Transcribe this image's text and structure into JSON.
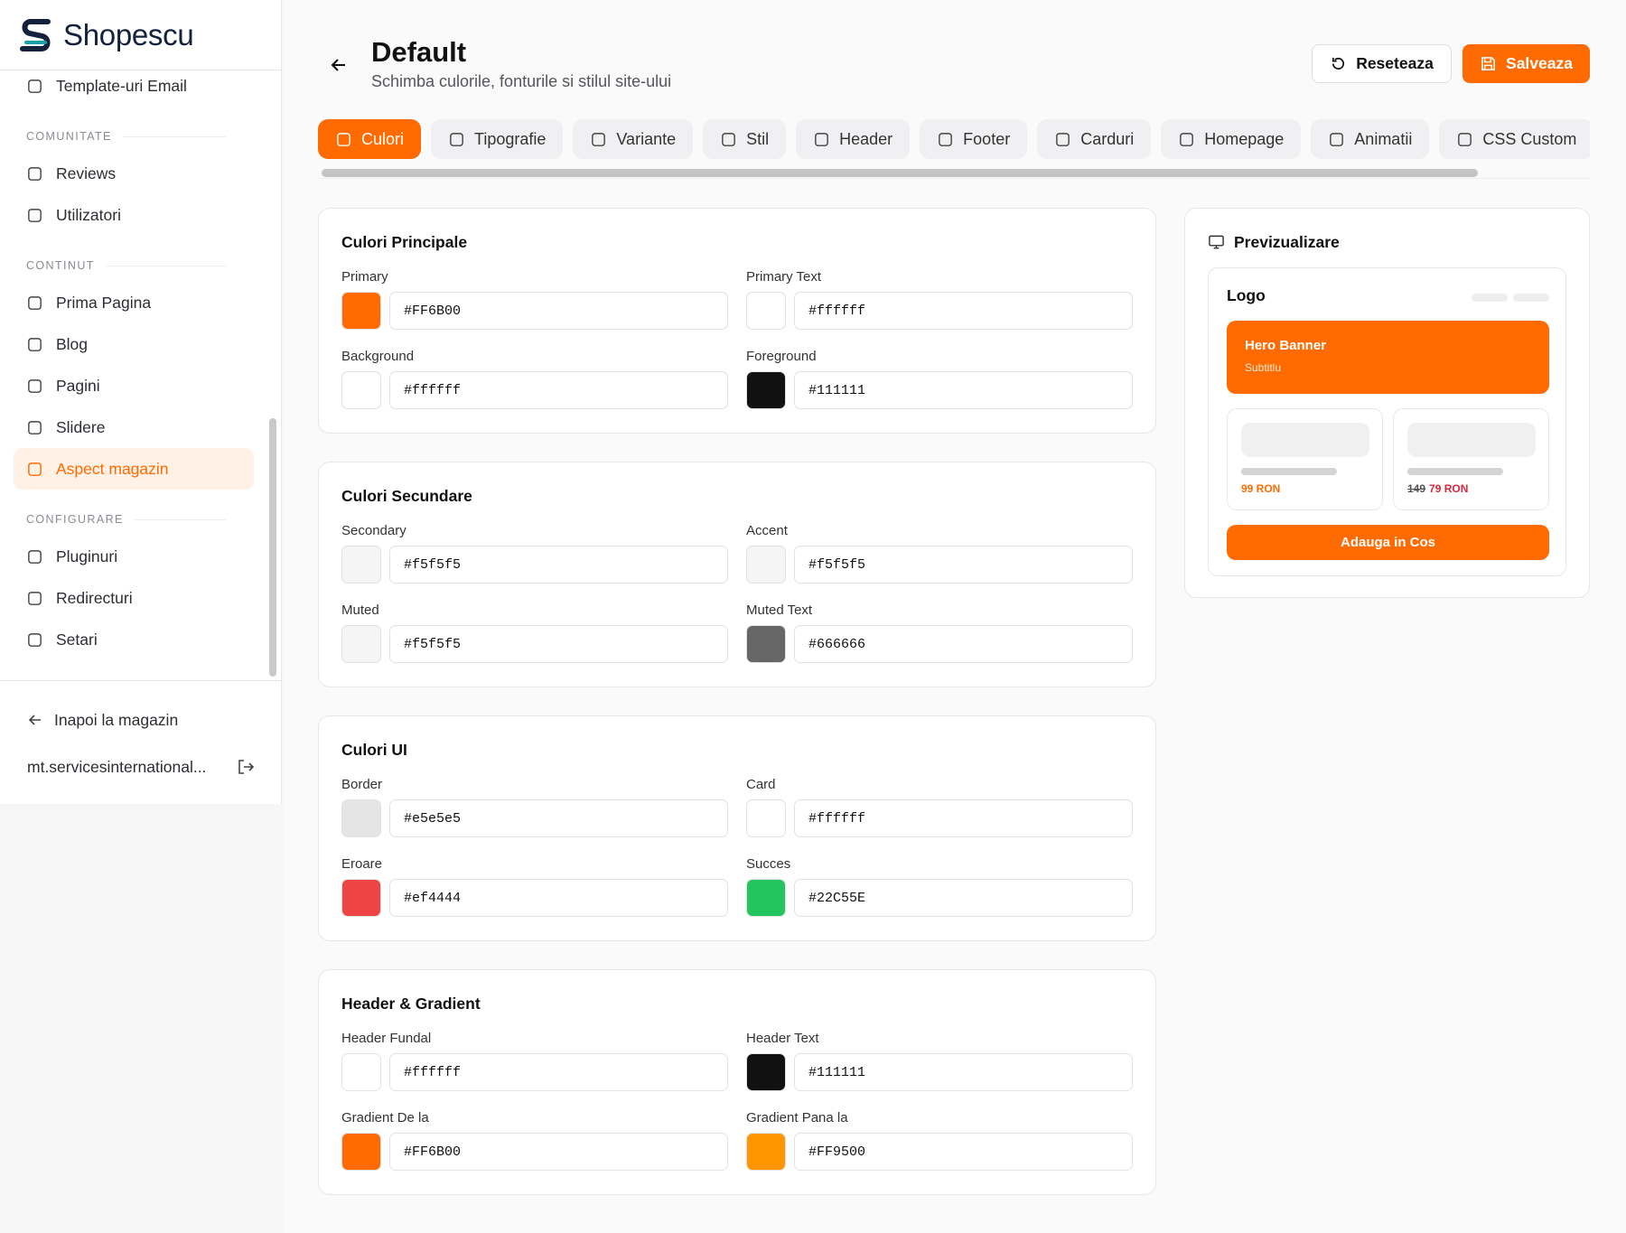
{
  "sidebar": {
    "brand": "Shopescu",
    "top_items": [
      "Template-uri Email"
    ],
    "groups": [
      {
        "label": "COMUNITATE",
        "items": [
          "Reviews",
          "Utilizatori"
        ]
      },
      {
        "label": "CONTINUT",
        "items": [
          "Prima Pagina",
          "Blog",
          "Pagini",
          "Slidere",
          "Aspect magazin"
        ]
      },
      {
        "label": "CONFIGURARE",
        "items": [
          "Pluginuri",
          "Redirecturi",
          "Setari"
        ]
      }
    ],
    "active": "Aspect magazin",
    "back": "Inapoi la magazin",
    "account": "mt.servicesinternational..."
  },
  "header": {
    "title": "Default",
    "subtitle": "Schimba culorile, fonturile si stilul site-ului",
    "reset": "Reseteaza",
    "save": "Salveaza"
  },
  "tabs": {
    "items": [
      "Culori",
      "Tipografie",
      "Variante",
      "Stil",
      "Header",
      "Footer",
      "Carduri",
      "Homepage",
      "Animatii",
      "CSS Custom"
    ],
    "active": "Culori"
  },
  "sections": [
    {
      "title": "Culori Principale",
      "fields": [
        {
          "label": "Primary",
          "value": "#FF6B00"
        },
        {
          "label": "Primary Text",
          "value": "#ffffff"
        },
        {
          "label": "Background",
          "value": "#ffffff"
        },
        {
          "label": "Foreground",
          "value": "#111111"
        }
      ]
    },
    {
      "title": "Culori Secundare",
      "fields": [
        {
          "label": "Secondary",
          "value": "#f5f5f5"
        },
        {
          "label": "Accent",
          "value": "#f5f5f5"
        },
        {
          "label": "Muted",
          "value": "#f5f5f5"
        },
        {
          "label": "Muted Text",
          "value": "#666666"
        }
      ]
    },
    {
      "title": "Culori UI",
      "fields": [
        {
          "label": "Border",
          "value": "#e5e5e5"
        },
        {
          "label": "Card",
          "value": "#ffffff"
        },
        {
          "label": "Eroare",
          "value": "#ef4444"
        },
        {
          "label": "Succes",
          "value": "#22C55E"
        }
      ]
    },
    {
      "title": "Header & Gradient",
      "fields": [
        {
          "label": "Header Fundal",
          "value": "#ffffff"
        },
        {
          "label": "Header Text",
          "value": "#111111"
        },
        {
          "label": "Gradient De la",
          "value": "#FF6B00"
        },
        {
          "label": "Gradient Pana la",
          "value": "#FF9500"
        }
      ]
    }
  ],
  "preview": {
    "title": "Previzualizare",
    "logo": "Logo",
    "hero_title": "Hero Banner",
    "hero_subtitle": "Subtitlu",
    "products": [
      {
        "price": "99 RON"
      },
      {
        "old_price": "149",
        "price": "79 RON"
      }
    ],
    "button": "Adauga in Cos"
  }
}
